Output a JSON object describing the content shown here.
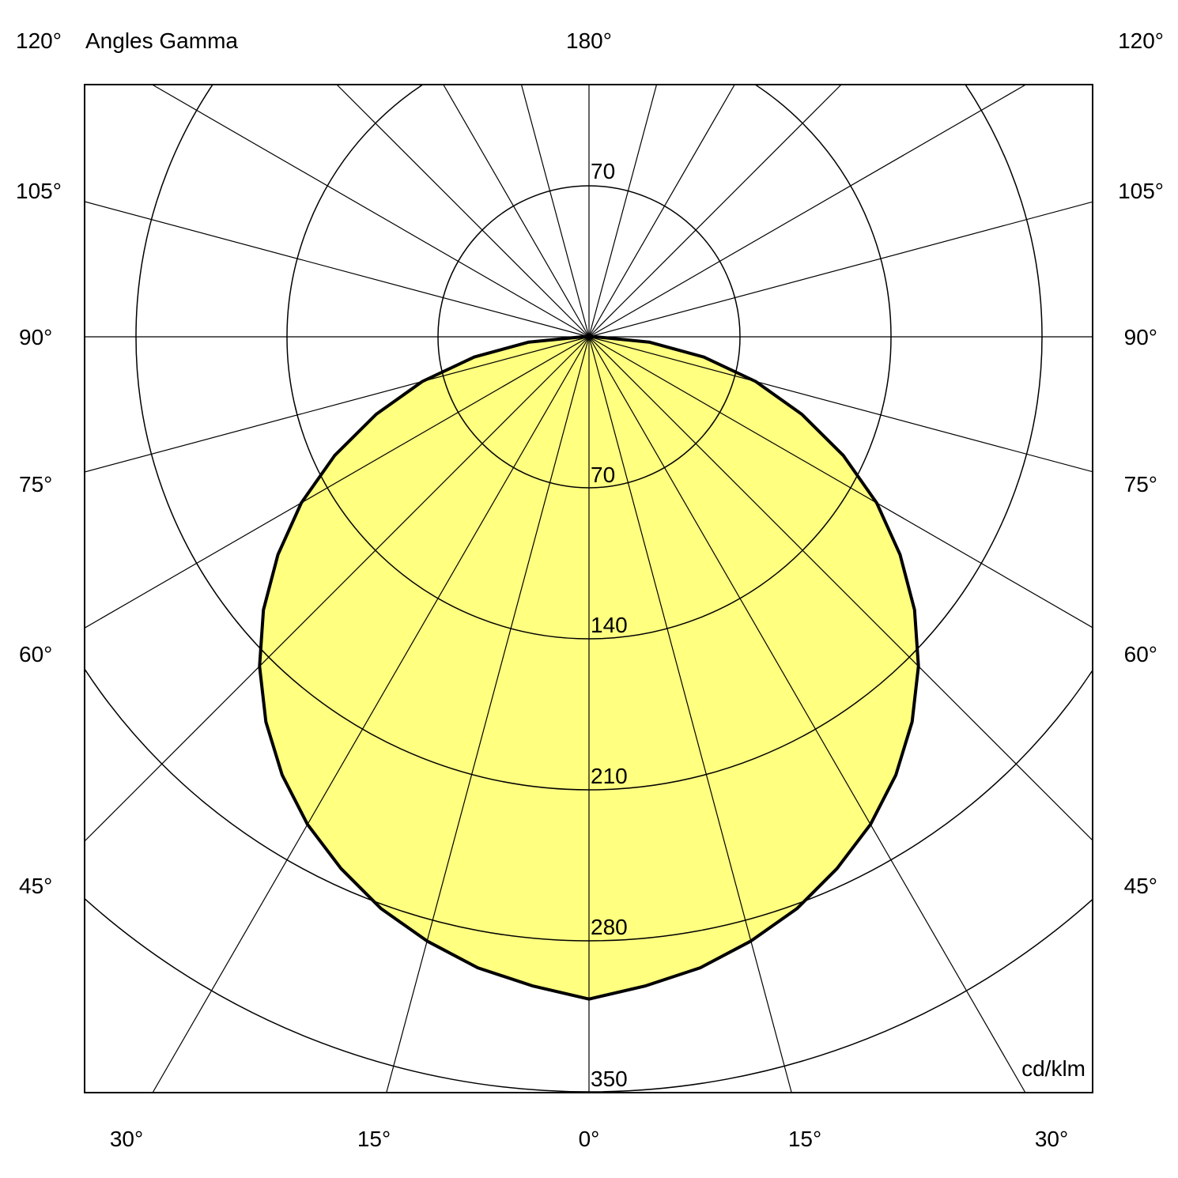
{
  "chart_data": {
    "type": "polar",
    "title": "Angles Gamma",
    "unit": "cd/klm",
    "top_label": "180°",
    "left_angle_labels": [
      "120°",
      "105°",
      "90°",
      "75°",
      "60°",
      "45°"
    ],
    "right_angle_labels": [
      "120°",
      "105°",
      "90°",
      "75°",
      "60°",
      "45°"
    ],
    "bottom_angle_labels": [
      "30°",
      "15°",
      "0°",
      "15°",
      "30°"
    ],
    "ring_values": [
      70,
      140,
      210,
      280,
      350
    ],
    "ring_labels": [
      "70",
      "140",
      "210",
      "280",
      "350"
    ],
    "top_ring_label": "70",
    "radial_line_step_deg": 15,
    "gamma_deg": [
      0,
      5,
      10,
      15,
      20,
      25,
      30,
      35,
      40,
      45,
      50,
      55,
      60,
      65,
      70,
      75,
      80,
      85,
      90
    ],
    "intensity": [
      307,
      302,
      297,
      290,
      282,
      272,
      261,
      248,
      233,
      216,
      197,
      176,
      154,
      130,
      105,
      80,
      54,
      28,
      3
    ],
    "symmetric": true,
    "fill_color": "#FFFF80",
    "line_color": "#000000"
  }
}
